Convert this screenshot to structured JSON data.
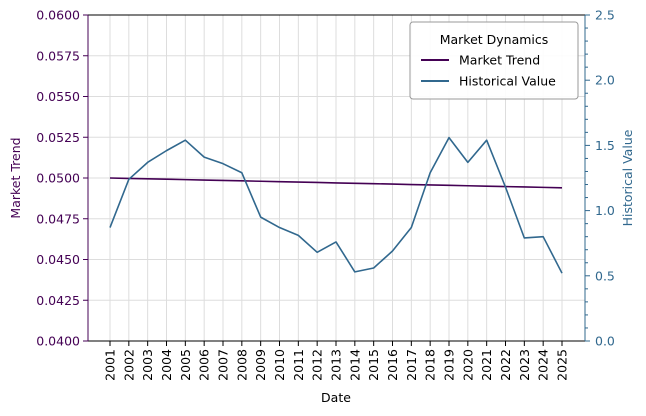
{
  "chart_data": {
    "type": "line",
    "x_label": "Date",
    "y_left_label": "Market Trend",
    "y_right_label": "Historical Value",
    "left_ylim": [
      0.04,
      0.06
    ],
    "right_ylim": [
      0.0,
      2.5
    ],
    "left_ticks": [
      "0.0400",
      "0.0425",
      "0.0450",
      "0.0475",
      "0.0500",
      "0.0525",
      "0.0550",
      "0.0575",
      "0.0600"
    ],
    "right_ticks": [
      "0.0",
      "0.5",
      "1.0",
      "1.5",
      "2.0",
      "2.5"
    ],
    "x": [
      "2001",
      "2002",
      "2003",
      "2004",
      "2005",
      "2006",
      "2007",
      "2008",
      "2009",
      "2010",
      "2011",
      "2012",
      "2013",
      "2014",
      "2015",
      "2016",
      "2017",
      "2018",
      "2019",
      "2020",
      "2021",
      "2022",
      "2023",
      "2024",
      "2025"
    ],
    "grid": true,
    "legend": {
      "title": "Market Dynamics",
      "placement": "top-right"
    },
    "series": [
      {
        "name": "Market Trend",
        "axis": "left",
        "color": "#440154",
        "values": [
          0.05,
          0.049975,
          0.04995,
          0.049925,
          0.0499,
          0.049875,
          0.04985,
          0.049825,
          0.0498,
          0.049775,
          0.04975,
          0.049725,
          0.0497,
          0.049675,
          0.04965,
          0.049625,
          0.0496,
          0.049575,
          0.04955,
          0.049525,
          0.0495,
          0.049475,
          0.04945,
          0.049425,
          0.0494
        ]
      },
      {
        "name": "Historical Value",
        "axis": "right",
        "color": "#31688e",
        "values": [
          0.87,
          1.24,
          1.37,
          1.46,
          1.54,
          1.41,
          1.36,
          1.29,
          0.95,
          0.87,
          0.81,
          0.68,
          0.76,
          0.53,
          0.56,
          0.69,
          0.87,
          1.29,
          1.56,
          1.37,
          1.54,
          1.18,
          0.79,
          0.8,
          0.52
        ]
      }
    ]
  }
}
